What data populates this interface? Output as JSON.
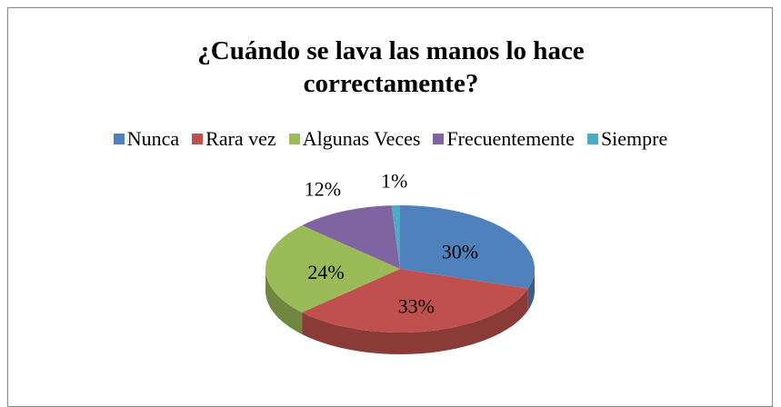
{
  "chart_data": {
    "type": "pie",
    "title": "¿Cuándo se lava las manos lo hace correctamente?",
    "categories": [
      "Nunca",
      "Rara vez",
      "Algunas Veces",
      "Frecuentemente",
      "Siempre"
    ],
    "values": [
      30,
      33,
      24,
      12,
      1
    ],
    "value_labels": [
      "30%",
      "33%",
      "24%",
      "12%",
      "1%"
    ],
    "colors": [
      "#4f81bd",
      "#c0504d",
      "#9bbb59",
      "#8064a2",
      "#4bacc6"
    ],
    "legend": "top"
  }
}
